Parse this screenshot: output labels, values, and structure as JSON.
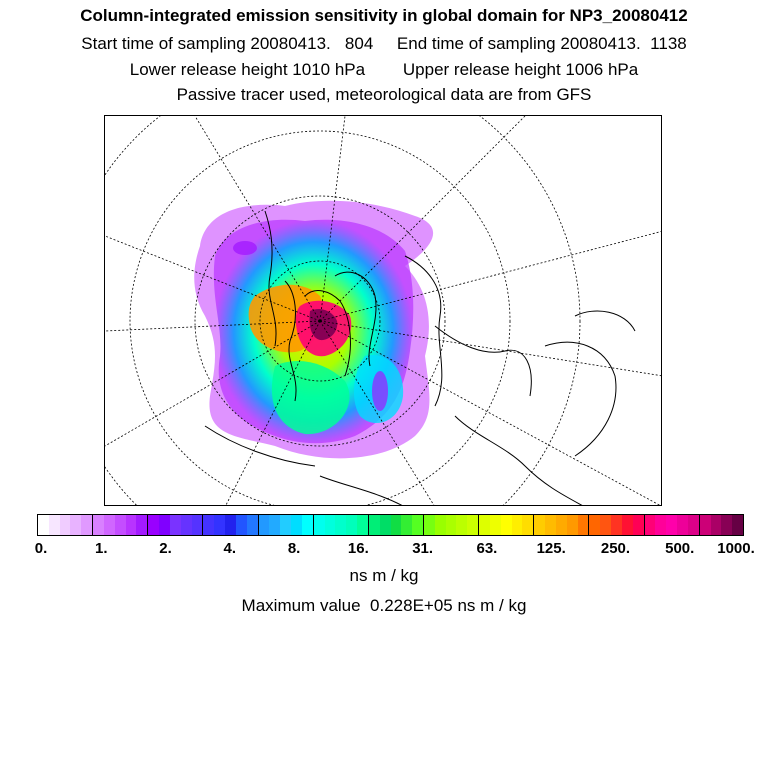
{
  "header": {
    "title": "Column-integrated emission sensitivity in global domain for NP3_20080412",
    "sampling": "Start time of sampling 20080413.   804     End time of sampling 20080413.  1138",
    "release": "Lower release height 1010 hPa        Upper release height 1006 hPa",
    "tracer": "Passive tracer used, meteorological data are from GFS"
  },
  "map": {
    "projection": "north-polar-stereographic",
    "content": "emission sensitivity plume over Arctic and Eurasia"
  },
  "colorbar": {
    "tick_labels": [
      "0.",
      "1.",
      "2.",
      "4.",
      "8.",
      "16.",
      "31.",
      "63.",
      "125.",
      "250.",
      "500.",
      "1000."
    ],
    "colors": [
      "#ffffff",
      "#f7e6ff",
      "#f0ccff",
      "#e8b3ff",
      "#e099ff",
      "#d980ff",
      "#d066ff",
      "#c44dff",
      "#b833ff",
      "#a31aff",
      "#9900ff",
      "#8000ff",
      "#7a33ff",
      "#6633ff",
      "#5533ff",
      "#4433ff",
      "#3333ff",
      "#2222ee",
      "#2255ff",
      "#2277ff",
      "#2299ff",
      "#22aaff",
      "#22ccff",
      "#00ddff",
      "#00ffff",
      "#00ffee",
      "#00ffdd",
      "#00ffcc",
      "#00ffbb",
      "#00ff99",
      "#00ee77",
      "#00dd66",
      "#11dd44",
      "#33ee33",
      "#55ff22",
      "#77ff11",
      "#99ff00",
      "#aaff00",
      "#bbff00",
      "#ccff00",
      "#ddff00",
      "#eeff00",
      "#ffff00",
      "#ffee00",
      "#ffdd00",
      "#ffcc00",
      "#ffbb00",
      "#ffaa00",
      "#ff9900",
      "#ff7700",
      "#ff6600",
      "#ff5511",
      "#ff3322",
      "#ff1133",
      "#ff0055",
      "#ff0077",
      "#ff0099",
      "#ff00aa",
      "#ee0099",
      "#dd0088",
      "#cc0077",
      "#aa0066",
      "#880055",
      "#660044"
    ]
  },
  "units": "ns m / kg",
  "maximum": "Maximum value  0.228E+05 ns m / kg"
}
